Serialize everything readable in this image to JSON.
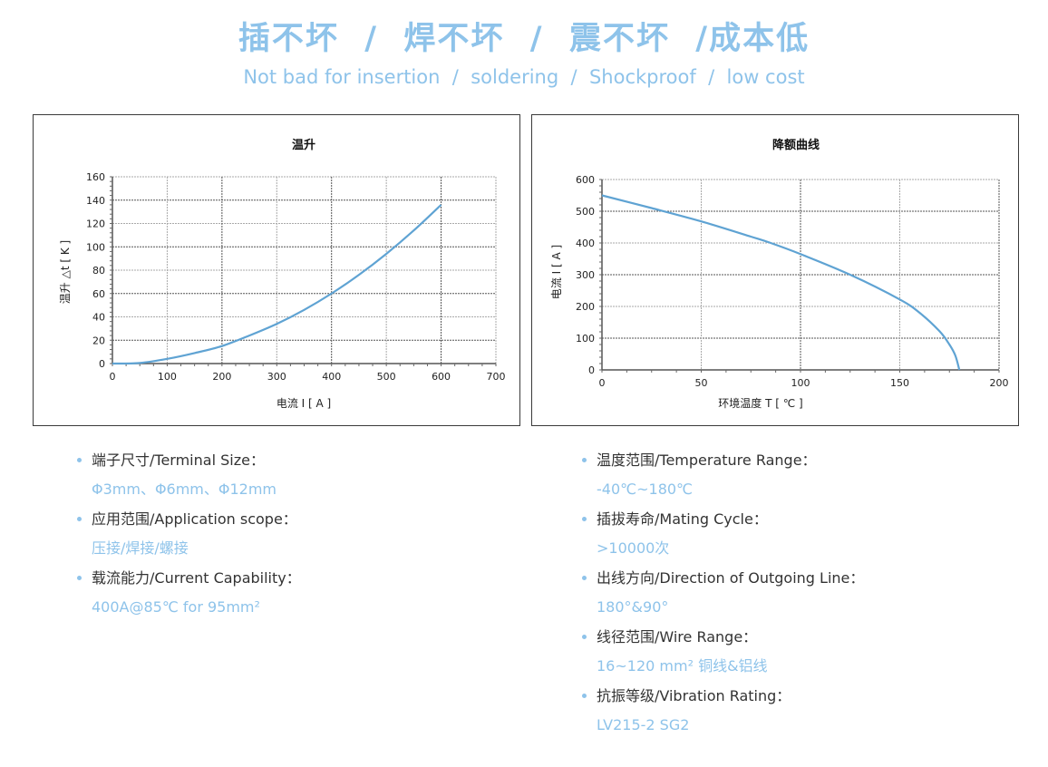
{
  "header": {
    "title_cn": "插不坏  /  焊不坏  /  震不坏  /成本低",
    "title_en": "Not bad for insertion  /  soldering  /  Shockproof  /  low cost"
  },
  "colors": {
    "accent": "#8ec3ea",
    "curve": "#5fa3d3",
    "label_text": "#333333",
    "border": "#3a3a3a"
  },
  "chart_data": [
    {
      "type": "line",
      "title": "温升",
      "xlabel": "电流 I [ A ]",
      "ylabel": "温升 △t [ K ]",
      "xlim": [
        0,
        700
      ],
      "ylim": [
        0,
        160
      ],
      "xticks": [
        0,
        100,
        200,
        300,
        400,
        500,
        600,
        700
      ],
      "yticks": [
        0,
        20,
        40,
        60,
        80,
        100,
        120,
        140,
        160
      ],
      "grid": true,
      "legend": null,
      "series": [
        {
          "name": "温升",
          "x": [
            0,
            50,
            100,
            150,
            200,
            250,
            300,
            350,
            400,
            450,
            500,
            550,
            600
          ],
          "y": [
            0,
            0.5,
            4,
            9,
            15,
            24,
            34,
            46,
            60,
            76,
            94,
            114,
            136
          ]
        }
      ]
    },
    {
      "type": "line",
      "title": "降额曲线",
      "xlabel": "环境温度 T [ ℃ ]",
      "ylabel": "电流 I [ A ]",
      "xlim": [
        0,
        200
      ],
      "ylim": [
        0,
        600
      ],
      "xticks": [
        0,
        50,
        100,
        150,
        200
      ],
      "yticks": [
        0,
        100,
        200,
        300,
        400,
        500,
        600
      ],
      "grid": true,
      "legend": null,
      "series": [
        {
          "name": "降额曲线",
          "x": [
            0,
            25,
            50,
            75,
            85,
            100,
            125,
            150,
            160,
            170,
            175,
            178,
            180
          ],
          "y": [
            550,
            510,
            468,
            420,
            400,
            365,
            300,
            222,
            180,
            122,
            80,
            45,
            0
          ]
        }
      ]
    }
  ],
  "specs_left": [
    {
      "label": "端子尺寸/Terminal Size：",
      "value": "Φ3mm、Φ6mm、Φ12mm"
    },
    {
      "label": "应用范围/Application scope：",
      "value": "压接/焊接/螺接"
    },
    {
      "label": "载流能力/Current Capability：",
      "value": "400A@85℃ for 95mm²"
    }
  ],
  "specs_right": [
    {
      "label": "温度范围/Temperature Range：",
      "value": "-40℃~180℃"
    },
    {
      "label": "插拔寿命/Mating Cycle：",
      "value": ">10000次"
    },
    {
      "label": "出线方向/Direction of Outgoing Line：",
      "value": "180°&90°"
    },
    {
      "label": "线径范围/Wire Range：",
      "value": "16~120 mm² 铜线&铝线"
    },
    {
      "label": "抗振等级/Vibration Rating：",
      "value": "LV215-2 SG2"
    }
  ]
}
